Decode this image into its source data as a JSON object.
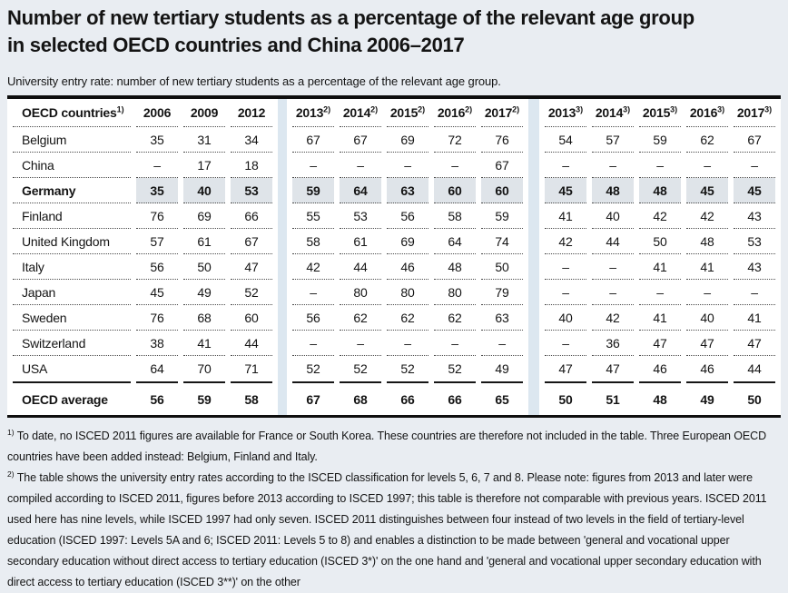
{
  "title": {
    "line1": "Number of new tertiary students as a percentage of the relevant age group",
    "line2": "in selected OECD countries and China 2006–2017"
  },
  "subtitle": "University entry rate: number of new tertiary students as a percentage of the relevant age group.",
  "table": {
    "country_header": {
      "label": "OECD countries",
      "sup": "1)"
    },
    "year_columns": [
      {
        "label": "2006",
        "sup": ""
      },
      {
        "label": "2009",
        "sup": ""
      },
      {
        "label": "2012",
        "sup": ""
      },
      {
        "label": "2013",
        "sup": "2)"
      },
      {
        "label": "2014",
        "sup": "2)"
      },
      {
        "label": "2015",
        "sup": "2)"
      },
      {
        "label": "2016",
        "sup": "2)"
      },
      {
        "label": "2017",
        "sup": "2)"
      },
      {
        "label": "2013",
        "sup": "3)"
      },
      {
        "label": "2014",
        "sup": "3)"
      },
      {
        "label": "2015",
        "sup": "3)"
      },
      {
        "label": "2016",
        "sup": "3)"
      },
      {
        "label": "2017",
        "sup": "3)"
      }
    ],
    "group_gap_before_indices": [
      3,
      8
    ],
    "rows": [
      {
        "country": "Belgium",
        "emphasis": false,
        "values": [
          "35",
          "31",
          "34",
          "67",
          "67",
          "69",
          "72",
          "76",
          "54",
          "57",
          "59",
          "62",
          "67"
        ]
      },
      {
        "country": "China",
        "emphasis": false,
        "values": [
          "–",
          "17",
          "18",
          "–",
          "–",
          "–",
          "–",
          "67",
          "–",
          "–",
          "–",
          "–",
          "–"
        ]
      },
      {
        "country": "Germany",
        "emphasis": true,
        "values": [
          "35",
          "40",
          "53",
          "59",
          "64",
          "63",
          "60",
          "60",
          "45",
          "48",
          "48",
          "45",
          "45"
        ]
      },
      {
        "country": "Finland",
        "emphasis": false,
        "values": [
          "76",
          "69",
          "66",
          "55",
          "53",
          "56",
          "58",
          "59",
          "41",
          "40",
          "42",
          "42",
          "43"
        ]
      },
      {
        "country": "United Kingdom",
        "emphasis": false,
        "values": [
          "57",
          "61",
          "67",
          "58",
          "61",
          "69",
          "64",
          "74",
          "42",
          "44",
          "50",
          "48",
          "53"
        ]
      },
      {
        "country": "Italy",
        "emphasis": false,
        "values": [
          "56",
          "50",
          "47",
          "42",
          "44",
          "46",
          "48",
          "50",
          "–",
          "–",
          "41",
          "41",
          "43"
        ]
      },
      {
        "country": "Japan",
        "emphasis": false,
        "values": [
          "45",
          "49",
          "52",
          "–",
          "80",
          "80",
          "80",
          "79",
          "–",
          "–",
          "–",
          "–",
          "–"
        ]
      },
      {
        "country": "Sweden",
        "emphasis": false,
        "values": [
          "76",
          "68",
          "60",
          "56",
          "62",
          "62",
          "62",
          "63",
          "40",
          "42",
          "41",
          "40",
          "41"
        ]
      },
      {
        "country": "Switzerland",
        "emphasis": false,
        "values": [
          "38",
          "41",
          "44",
          "–",
          "–",
          "–",
          "–",
          "–",
          "–",
          "36",
          "47",
          "47",
          "47"
        ]
      },
      {
        "country": "USA",
        "emphasis": false,
        "values": [
          "64",
          "70",
          "71",
          "52",
          "52",
          "52",
          "52",
          "49",
          "47",
          "47",
          "46",
          "46",
          "44"
        ]
      }
    ],
    "average_row": {
      "country": "OECD average",
      "values": [
        "56",
        "59",
        "58",
        "67",
        "68",
        "66",
        "66",
        "65",
        "50",
        "51",
        "48",
        "49",
        "50"
      ]
    }
  },
  "footnotes": [
    {
      "sup": "1)",
      "text": "To date, no ISCED 2011 figures are available for France or South Korea. These countries are therefore not included in the table. Three European OECD countries have been added instead: Belgium, Finland and Italy."
    },
    {
      "sup": "2)",
      "text": "The table shows the university entry rates according to the ISCED classification for levels 5, 6, 7 and 8. Please note: figures from 2013 and later were compiled according to ISCED 2011, figures before 2013 according to ISCED 1997; this table is therefore not comparable with previous years. ISCED 2011 used here has nine levels, while ISCED 1997 had only seven. ISCED 2011 distinguishes between four instead of two levels in the field of tertiary-level education (ISCED 1997: Levels 5A and 6; ISCED 2011: Levels 5 to 8) and enables a distinction to be made between 'general and vocational upper secondary education without direct access to tertiary education (ISCED 3*)' on the one hand and 'general and vocational upper secondary education with direct access to tertiary education (ISCED 3**)' on the other"
    }
  ],
  "colors": {
    "page_background": "#e9edf2",
    "table_background": "#ffffff",
    "group_band": "#dce7f0",
    "emphasis_row_shading": "#dfe4e9",
    "rule": "#0e0e0e"
  }
}
